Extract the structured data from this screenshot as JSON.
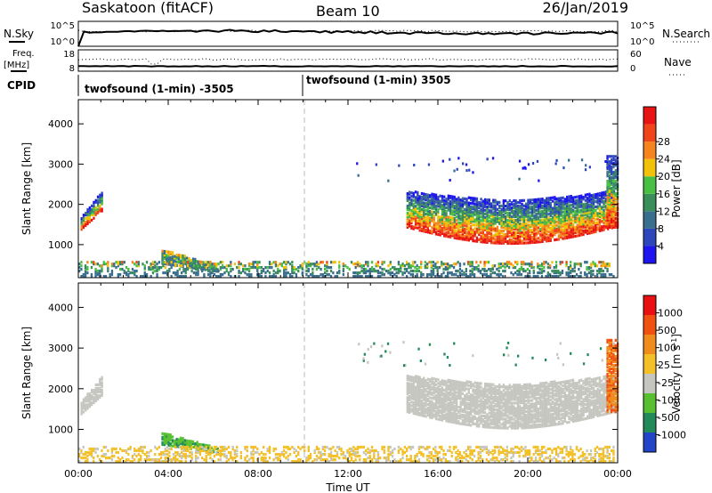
{
  "header": {
    "radar": "Saskatoon (fitACF)",
    "beam": "Beam 10",
    "date": "26/Jan/2019"
  },
  "summary_panel": {
    "nsky_label": "N.Sky",
    "nsky_ticks": [
      "10^5",
      "10^0"
    ],
    "nsearch_label": "N.Search",
    "nsearch_ticks": [
      "10^5",
      "10^0"
    ],
    "freq_label": "Freq.",
    "freq_unit": "[MHz]",
    "freq_ticks": [
      "18",
      "8"
    ],
    "nave_label": "Nave",
    "nave_ticks": [
      "60",
      "0"
    ],
    "cpid_label": "CPID",
    "cpid_segments": [
      {
        "label": "twofsound (1-min) -3505",
        "start_hour": 0.0
      },
      {
        "label": "twofsound (1-min) 3505",
        "start_hour": 10.0
      }
    ]
  },
  "chart_data": [
    {
      "type": "heatmap",
      "ylabel": "Slant Range [km]",
      "ylim": [
        180,
        4600
      ],
      "xlim": [
        0,
        24
      ],
      "y_ticks": [
        1000,
        2000,
        3000,
        4000
      ],
      "colorbar": {
        "label": "Power [dB]",
        "ticks": [
          "4",
          "8",
          "12",
          "16",
          "20",
          "24",
          "28"
        ],
        "colors": [
          "#1e14ee",
          "#2e46bc",
          "#3a6e8e",
          "#3a8e5a",
          "#49c043",
          "#f2c20a",
          "#f5841c",
          "#f0441a",
          "#e81414"
        ]
      },
      "echo_regions": [
        {
          "t0": 0.1,
          "t1": 1.1,
          "r0": 1350,
          "r1": 2350,
          "value": "high"
        },
        {
          "t0": 3.7,
          "t1": 6.2,
          "r0": 300,
          "r1": 850,
          "value": "mid"
        },
        {
          "t0": 0.0,
          "t1": 23.8,
          "r0": 180,
          "r1": 550,
          "value": "mid"
        },
        {
          "t0": 14.6,
          "t1": 23.8,
          "r0": 1000,
          "r1": 2300,
          "value": "high"
        },
        {
          "t0": 23.5,
          "t1": 24.0,
          "r0": 1400,
          "r1": 3200,
          "value": "high"
        }
      ]
    },
    {
      "type": "heatmap",
      "ylabel": "Slant Range [km]",
      "ylim": [
        180,
        4600
      ],
      "xlim": [
        0,
        24
      ],
      "y_ticks": [
        1000,
        2000,
        3000,
        4000
      ],
      "x_ticks": [
        "00:00",
        "04:00",
        "08:00",
        "12:00",
        "16:00",
        "20:00",
        "00:00"
      ],
      "xlabel": "Time UT",
      "colorbar": {
        "label": "Velocity [m s^-1]",
        "ticks": [
          "1000",
          "500",
          "100",
          "25",
          "-25",
          "-100",
          "-500",
          "-1000"
        ],
        "colors": [
          "#2244c8",
          "#228a58",
          "#58c030",
          "#c6c6c0",
          "#f4c028",
          "#f08c1c",
          "#f05010",
          "#e81010"
        ]
      },
      "echo_regions": [
        {
          "t0": 0.1,
          "t1": 1.1,
          "r0": 1350,
          "r1": 2350,
          "value": "grey"
        },
        {
          "t0": 3.7,
          "t1": 6.2,
          "r0": 400,
          "r1": 900,
          "value": "green"
        },
        {
          "t0": 0.0,
          "t1": 23.8,
          "r0": 180,
          "r1": 550,
          "value": "yellow"
        },
        {
          "t0": 14.6,
          "t1": 23.8,
          "r0": 1000,
          "r1": 2300,
          "value": "grey"
        },
        {
          "t0": 23.5,
          "t1": 24.0,
          "r0": 1400,
          "r1": 3200,
          "value": "orange"
        }
      ]
    }
  ]
}
